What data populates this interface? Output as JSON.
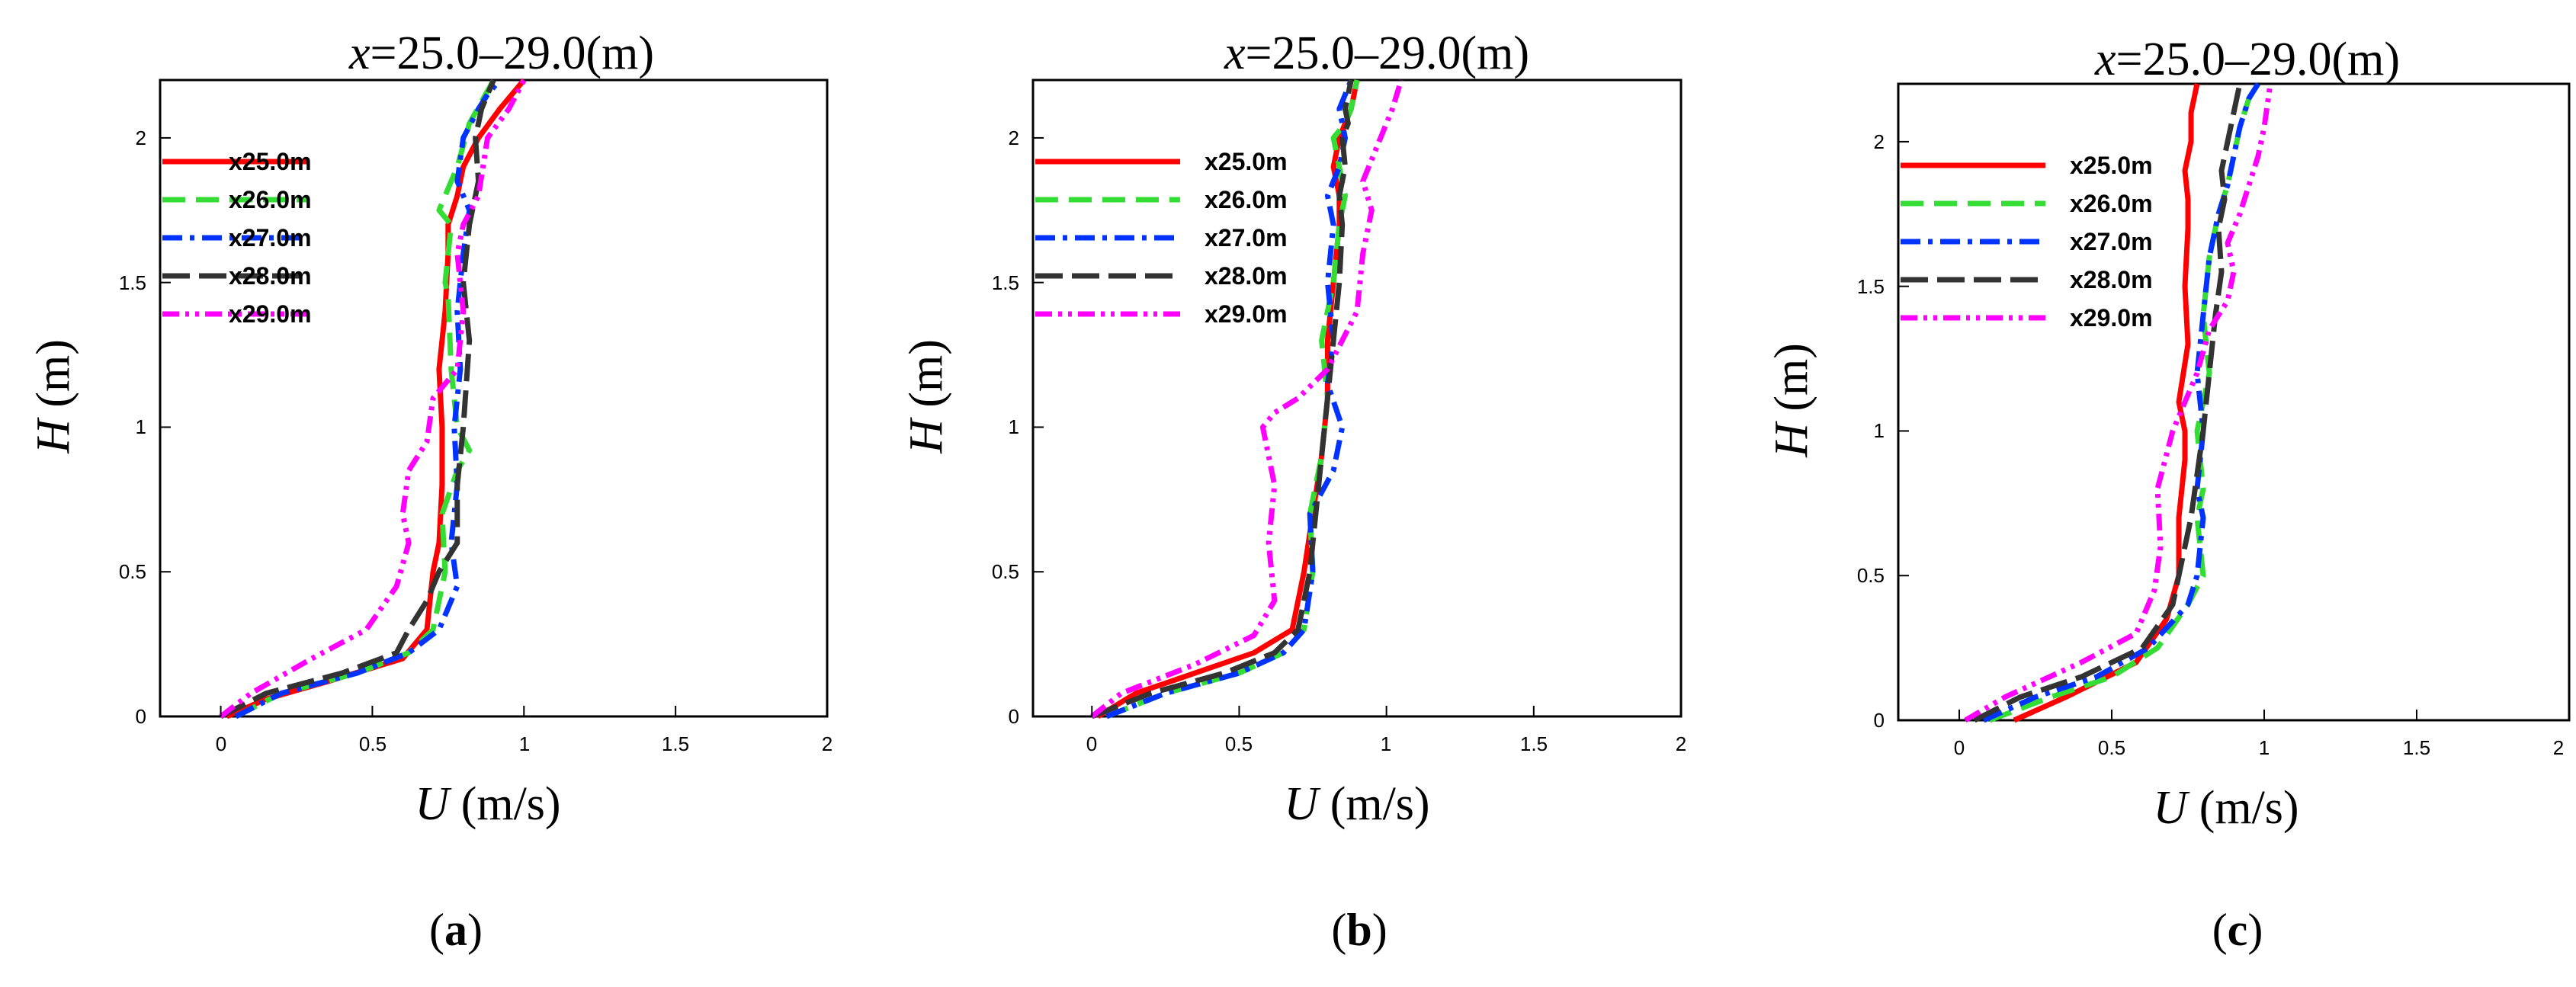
{
  "figure": {
    "panels": [
      {
        "caption_letter": "a",
        "caption_open": "(",
        "caption_close": ")"
      },
      {
        "caption_letter": "b",
        "caption_open": "(",
        "caption_close": ")"
      },
      {
        "caption_letter": "c",
        "caption_open": "(",
        "caption_close": ")"
      }
    ]
  },
  "chart_data": [
    {
      "type": "line",
      "title_var": "x",
      "title_rest": "=25.0–29.0(m)",
      "xlabel_var": "U",
      "xlabel_unit": " (m/s)",
      "ylabel_var": "H",
      "ylabel_unit": " (m)",
      "xlim": [
        -0.2,
        2.0
      ],
      "ylim": [
        0,
        2.2
      ],
      "xticks": [
        0,
        0.5,
        1,
        1.5,
        2
      ],
      "xtick_labels": [
        "0",
        "0.5",
        "1",
        "1.5",
        "2"
      ],
      "yticks": [
        0,
        0.5,
        1,
        1.5,
        2
      ],
      "ytick_labels": [
        "0",
        "0.5",
        "1",
        "1.5",
        "2"
      ],
      "legend_position": "top-left",
      "series": [
        {
          "name": "x25.0m",
          "color": "#ff0000",
          "dash": "solid",
          "x": [
            0.02,
            0.15,
            0.35,
            0.6,
            0.68,
            0.7,
            0.72,
            0.73,
            0.73,
            0.72,
            0.74,
            0.75,
            0.75,
            0.78,
            0.8,
            0.85,
            0.92,
            1.0
          ],
          "y": [
            0.0,
            0.06,
            0.12,
            0.2,
            0.3,
            0.5,
            0.6,
            0.8,
            1.0,
            1.2,
            1.4,
            1.6,
            1.7,
            1.8,
            1.9,
            2.0,
            2.1,
            2.2
          ]
        },
        {
          "name": "x26.0m",
          "color": "#33dd33",
          "dash": "dash",
          "x": [
            0.05,
            0.2,
            0.45,
            0.62,
            0.7,
            0.74,
            0.73,
            0.78,
            0.82,
            0.78,
            0.76,
            0.75,
            0.74,
            0.76,
            0.72,
            0.78,
            0.82,
            0.9
          ],
          "y": [
            0.0,
            0.08,
            0.15,
            0.22,
            0.3,
            0.5,
            0.7,
            0.85,
            0.92,
            1.0,
            1.2,
            1.45,
            1.5,
            1.7,
            1.75,
            1.9,
            2.05,
            2.2
          ]
        },
        {
          "name": "x27.0m",
          "color": "#0033ff",
          "dash": "dashdot",
          "x": [
            0.05,
            0.2,
            0.45,
            0.62,
            0.72,
            0.78,
            0.76,
            0.78,
            0.77,
            0.79,
            0.78,
            0.8,
            0.82,
            0.78,
            0.8,
            0.85,
            0.88,
            0.92
          ],
          "y": [
            0.0,
            0.08,
            0.15,
            0.22,
            0.3,
            0.45,
            0.6,
            0.8,
            1.0,
            1.2,
            1.4,
            1.6,
            1.75,
            1.85,
            2.0,
            2.1,
            2.15,
            2.2
          ]
        },
        {
          "name": "x28.0m",
          "color": "#333333",
          "dash": "longdash",
          "x": [
            0.0,
            0.15,
            0.4,
            0.58,
            0.62,
            0.68,
            0.72,
            0.78,
            0.78,
            0.8,
            0.82,
            0.8,
            0.82,
            0.85,
            0.84,
            0.86,
            0.88,
            0.9
          ],
          "y": [
            0.0,
            0.08,
            0.15,
            0.22,
            0.3,
            0.4,
            0.5,
            0.6,
            0.8,
            1.0,
            1.3,
            1.5,
            1.7,
            1.85,
            2.0,
            2.1,
            2.15,
            2.2
          ]
        },
        {
          "name": "x29.0m",
          "color": "#ff00ff",
          "dash": "dashdotdot",
          "x": [
            0.0,
            0.1,
            0.3,
            0.48,
            0.58,
            0.62,
            0.6,
            0.62,
            0.68,
            0.7,
            0.78,
            0.8,
            0.78,
            0.8,
            0.85,
            0.88,
            0.95,
            1.0
          ],
          "y": [
            0.0,
            0.08,
            0.2,
            0.3,
            0.45,
            0.6,
            0.7,
            0.85,
            0.95,
            1.1,
            1.2,
            1.4,
            1.6,
            1.7,
            1.8,
            2.0,
            2.1,
            2.2
          ]
        }
      ]
    },
    {
      "type": "line",
      "title_var": "x",
      "title_rest": "=25.0–29.0(m)",
      "xlabel_var": "U",
      "xlabel_unit": " (m/s)",
      "ylabel_var": "H",
      "ylabel_unit": " (m)",
      "xlim": [
        -0.2,
        2.0
      ],
      "ylim": [
        0,
        2.2
      ],
      "xticks": [
        0,
        0.5,
        1,
        1.5,
        2
      ],
      "xtick_labels": [
        "0",
        "0.5",
        "1",
        "1.5",
        "2"
      ],
      "yticks": [
        0,
        0.5,
        1,
        1.5,
        2
      ],
      "ytick_labels": [
        "0",
        "0.5",
        "1",
        "1.5",
        "2"
      ],
      "legend_position": "top-left",
      "series": [
        {
          "name": "x25.0m",
          "color": "#ff0000",
          "dash": "solid",
          "x": [
            0.02,
            0.15,
            0.35,
            0.55,
            0.68,
            0.72,
            0.75,
            0.78,
            0.8,
            0.8,
            0.82,
            0.84,
            0.84,
            0.82,
            0.84,
            0.86,
            0.88,
            0.9
          ],
          "y": [
            0.0,
            0.08,
            0.15,
            0.22,
            0.3,
            0.5,
            0.7,
            0.9,
            1.1,
            1.3,
            1.5,
            1.7,
            1.8,
            1.9,
            2.0,
            2.05,
            2.1,
            2.2
          ]
        },
        {
          "name": "x26.0m",
          "color": "#33dd33",
          "dash": "dash",
          "x": [
            0.05,
            0.25,
            0.5,
            0.65,
            0.72,
            0.75,
            0.74,
            0.78,
            0.8,
            0.78,
            0.82,
            0.84,
            0.86,
            0.84,
            0.82,
            0.86,
            0.88,
            0.9
          ],
          "y": [
            0.0,
            0.08,
            0.15,
            0.22,
            0.3,
            0.5,
            0.7,
            0.9,
            1.1,
            1.3,
            1.5,
            1.7,
            1.8,
            1.9,
            2.0,
            2.05,
            2.1,
            2.2
          ]
        },
        {
          "name": "x27.0m",
          "color": "#0033ff",
          "dash": "dashdot",
          "x": [
            0.05,
            0.25,
            0.5,
            0.65,
            0.72,
            0.75,
            0.74,
            0.82,
            0.85,
            0.8,
            0.82,
            0.8,
            0.82,
            0.8,
            0.84,
            0.86,
            0.84,
            0.88
          ],
          "y": [
            0.0,
            0.08,
            0.15,
            0.22,
            0.3,
            0.5,
            0.7,
            0.85,
            1.0,
            1.15,
            1.3,
            1.5,
            1.7,
            1.8,
            1.9,
            2.0,
            2.1,
            2.2
          ]
        },
        {
          "name": "x28.0m",
          "color": "#333333",
          "dash": "longdash",
          "x": [
            0.0,
            0.2,
            0.45,
            0.62,
            0.7,
            0.74,
            0.76,
            0.78,
            0.8,
            0.82,
            0.84,
            0.85,
            0.84,
            0.86,
            0.85,
            0.87,
            0.86,
            0.88
          ],
          "y": [
            0.0,
            0.08,
            0.15,
            0.22,
            0.3,
            0.5,
            0.7,
            0.9,
            1.1,
            1.3,
            1.5,
            1.7,
            1.8,
            1.9,
            2.0,
            2.05,
            2.1,
            2.2
          ]
        },
        {
          "name": "x29.0m",
          "color": "#ff00ff",
          "dash": "dashdotdot",
          "x": [
            0.0,
            0.1,
            0.35,
            0.55,
            0.62,
            0.6,
            0.62,
            0.58,
            0.62,
            0.7,
            0.8,
            0.9,
            0.92,
            0.95,
            0.92,
            0.98,
            1.02,
            1.05
          ],
          "y": [
            0.0,
            0.08,
            0.18,
            0.28,
            0.4,
            0.6,
            0.8,
            1.0,
            1.05,
            1.1,
            1.2,
            1.4,
            1.6,
            1.75,
            1.85,
            2.0,
            2.1,
            2.2
          ]
        }
      ]
    },
    {
      "type": "line",
      "title_var": "x",
      "title_rest": "=25.0–29.0(m)",
      "xlabel_var": "U",
      "xlabel_unit": " (m/s)",
      "ylabel_var": "H",
      "ylabel_unit": " (m)",
      "xlim": [
        -0.2,
        2.0
      ],
      "ylim": [
        0,
        2.2
      ],
      "xticks": [
        0,
        0.5,
        1,
        1.5,
        2
      ],
      "xtick_labels": [
        "0",
        "0.5",
        "1",
        "1.5",
        "2"
      ],
      "yticks": [
        0,
        0.5,
        1,
        1.5,
        2
      ],
      "ytick_labels": [
        "0",
        "0.5",
        "1",
        "1.5",
        "2"
      ],
      "legend_position": "top-left",
      "series": [
        {
          "name": "x25.0m",
          "color": "#ff0000",
          "dash": "solid",
          "x": [
            0.18,
            0.35,
            0.58,
            0.68,
            0.72,
            0.72,
            0.74,
            0.74,
            0.72,
            0.75,
            0.74,
            0.75,
            0.75,
            0.74,
            0.76,
            0.76,
            0.76,
            0.78
          ],
          "y": [
            0.0,
            0.08,
            0.2,
            0.35,
            0.5,
            0.7,
            0.9,
            1.0,
            1.1,
            1.3,
            1.5,
            1.7,
            1.8,
            1.9,
            2.0,
            2.05,
            2.1,
            2.2
          ]
        },
        {
          "name": "x26.0m",
          "color": "#33dd33",
          "dash": "dash",
          "x": [
            0.1,
            0.3,
            0.5,
            0.65,
            0.75,
            0.8,
            0.78,
            0.8,
            0.78,
            0.82,
            0.8,
            0.82,
            0.85,
            0.88,
            0.9,
            0.92,
            0.95,
            0.98
          ],
          "y": [
            0.0,
            0.08,
            0.15,
            0.25,
            0.4,
            0.5,
            0.7,
            0.8,
            1.0,
            1.2,
            1.4,
            1.6,
            1.75,
            1.85,
            1.95,
            2.05,
            2.15,
            2.2
          ]
        },
        {
          "name": "x27.0m",
          "color": "#0033ff",
          "dash": "dashdot",
          "x": [
            0.08,
            0.25,
            0.45,
            0.62,
            0.75,
            0.78,
            0.8,
            0.78,
            0.8,
            0.78,
            0.8,
            0.82,
            0.85,
            0.88,
            0.9,
            0.92,
            0.95,
            0.98
          ],
          "y": [
            0.0,
            0.08,
            0.15,
            0.25,
            0.4,
            0.5,
            0.7,
            0.8,
            1.0,
            1.2,
            1.4,
            1.6,
            1.75,
            1.85,
            1.95,
            2.05,
            2.15,
            2.2
          ]
        },
        {
          "name": "x28.0m",
          "color": "#333333",
          "dash": "longdash",
          "x": [
            0.05,
            0.2,
            0.4,
            0.6,
            0.7,
            0.72,
            0.76,
            0.78,
            0.8,
            0.82,
            0.84,
            0.86,
            0.85,
            0.87,
            0.86,
            0.88,
            0.9,
            0.92
          ],
          "y": [
            0.0,
            0.08,
            0.15,
            0.25,
            0.4,
            0.5,
            0.7,
            0.85,
            1.0,
            1.2,
            1.4,
            1.55,
            1.7,
            1.8,
            1.9,
            2.0,
            2.1,
            2.2
          ]
        },
        {
          "name": "x29.0m",
          "color": "#ff00ff",
          "dash": "dashdotdot",
          "x": [
            0.02,
            0.15,
            0.4,
            0.58,
            0.64,
            0.66,
            0.65,
            0.7,
            0.78,
            0.82,
            0.88,
            0.9,
            0.88,
            0.92,
            0.95,
            0.98,
            1.0,
            1.02
          ],
          "y": [
            0.0,
            0.08,
            0.2,
            0.3,
            0.45,
            0.6,
            0.8,
            1.0,
            1.2,
            1.35,
            1.45,
            1.55,
            1.65,
            1.75,
            1.85,
            1.95,
            2.05,
            2.2
          ]
        }
      ]
    }
  ]
}
